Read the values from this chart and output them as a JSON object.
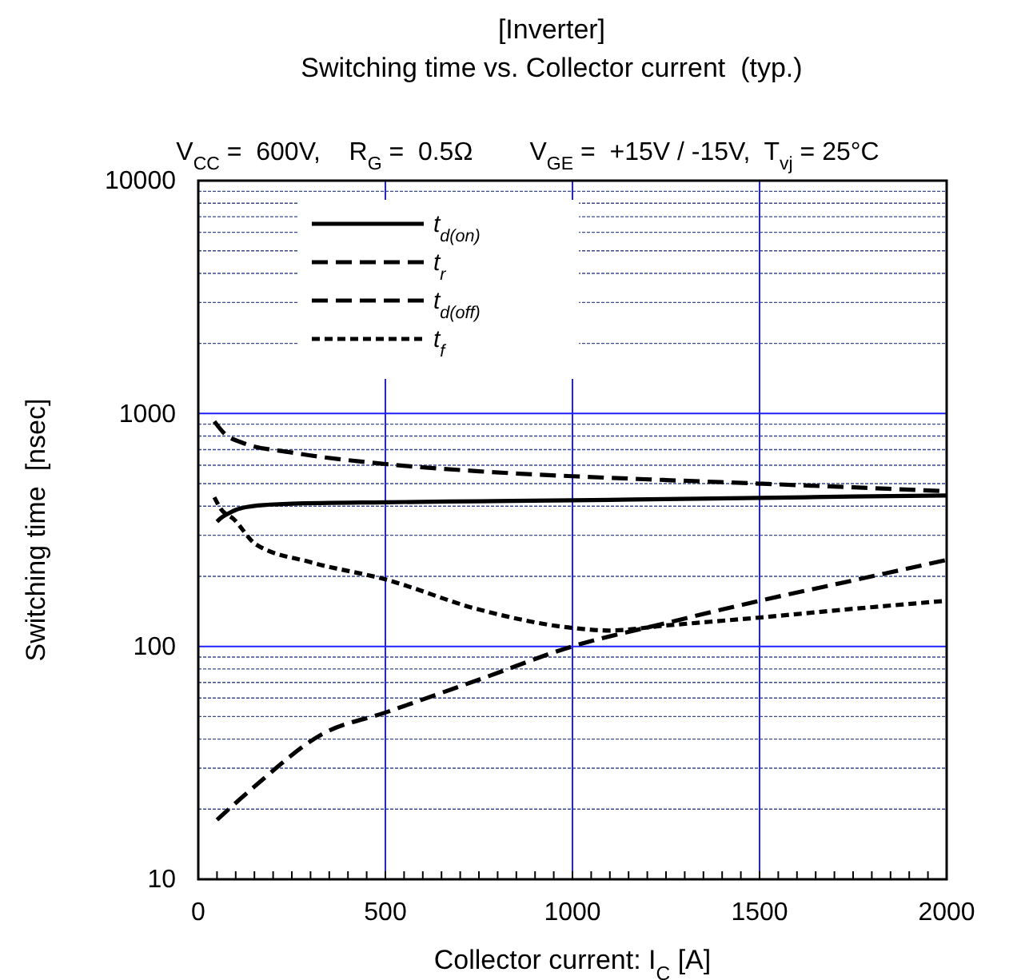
{
  "chart_data": {
    "type": "line",
    "title": "[Inverter]\nSwitching time vs. Collector current  (typ.)",
    "subtitle": "V$_{CC}$ =  600V,    R$_{G}$ =  0.5Ω        V$_{GE}$ =  +15V / -15V,  T$_{vj}$ = 25°C",
    "xlabel": "Collector current: I$_{C}$ [A]",
    "ylabel": "Switching time  [nsec]",
    "xlim": [
      0,
      2000
    ],
    "xticks": [
      0,
      500,
      1000,
      1500,
      2000
    ],
    "ylim": [
      10,
      10000
    ],
    "yticks": [
      10,
      {
        "value": 20,
        "label": null
      },
      {
        "value": 30,
        "label": null
      },
      {
        "value": 40,
        "label": null
      },
      {
        "value": 50,
        "label": null
      },
      {
        "value": 60,
        "label": null
      },
      {
        "value": 70,
        "label": null
      },
      {
        "value": 80,
        "label": null
      },
      {
        "value": 90,
        "label": null
      },
      100,
      {
        "value": 200,
        "label": null
      },
      {
        "value": 300,
        "label": null
      },
      {
        "value": 400,
        "label": null
      },
      {
        "value": 500,
        "label": null
      },
      {
        "value": 600,
        "label": null
      },
      {
        "value": 700,
        "label": null
      },
      {
        "value": 800,
        "label": null
      },
      {
        "value": 900,
        "label": null
      },
      1000,
      {
        "value": 2000,
        "label": null
      },
      {
        "value": 3000,
        "label": null
      },
      {
        "value": 4000,
        "label": null
      },
      {
        "value": 5000,
        "label": null
      },
      {
        "value": 6000,
        "label": null
      },
      {
        "value": 7000,
        "label": null
      },
      {
        "value": 8000,
        "label": null
      },
      {
        "value": 9000,
        "label": null
      },
      10000
    ],
    "log": "y",
    "grid": true,
    "legend": "top left",
    "marker": "none",
    "series": [
      {
        "name": "t$_{d(on)}$",
        "color": "#000000",
        "line_style": "solid",
        "x": [
          50,
          60,
          80,
          101,
          130,
          159,
          250,
          500,
          750,
          1000,
          1250,
          1500,
          1750,
          2000
        ],
        "values": [
          343,
          355,
          372,
          386,
          397,
          403,
          410,
          416,
          420,
          424,
          429,
          434,
          440,
          445
        ]
      },
      {
        "name": "t$_{r}$",
        "color": "#000000",
        "line_style": "dashed",
        "x": [
          50,
          150,
          331,
          500,
          750,
          1000,
          1250,
          1500,
          1750,
          2000
        ],
        "values": [
          18,
          25,
          42,
          52,
          72,
          100,
          126,
          157,
          192,
          235
        ]
      },
      {
        "name": "t$_{d(off)}$",
        "color": "#000000",
        "line_style": "dashed",
        "x": [
          43,
          70,
          117,
          250,
          500,
          750,
          1000,
          1250,
          1500,
          1750,
          2000
        ],
        "values": [
          925,
          820,
          750,
          680,
          607,
          565,
          538,
          518,
          500,
          482,
          464
        ]
      },
      {
        "name": "t$_{f}$",
        "color": "#000000",
        "line_style": "dotted",
        "x": [
          43,
          60,
          94,
          153,
          300,
          500,
          750,
          1000,
          1100,
          1250,
          1500,
          1750,
          2000
        ],
        "values": [
          437,
          390,
          353,
          275,
          230,
          194,
          144,
          120,
          117,
          123,
          133,
          145,
          157
        ]
      }
    ]
  }
}
